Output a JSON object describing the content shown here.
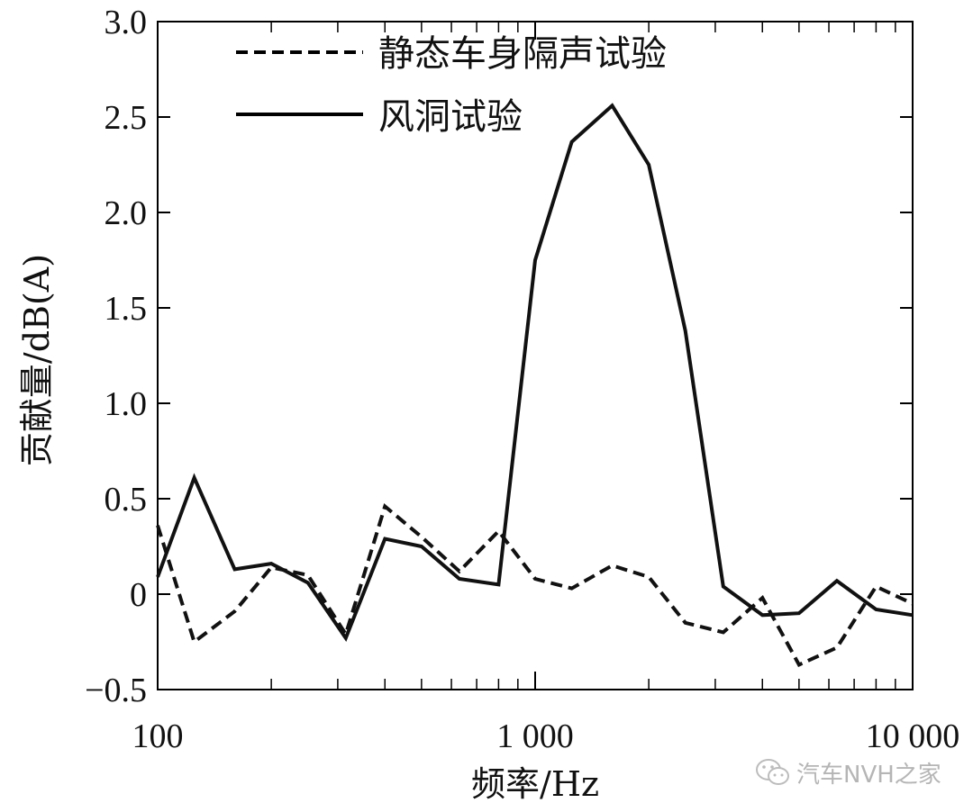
{
  "chart_data": {
    "type": "line",
    "xlabel": "频率/Hz",
    "ylabel": "贡献量/dB(A)",
    "x_scale": "log",
    "xlim": [
      100,
      10000
    ],
    "ylim": [
      -0.5,
      3.0
    ],
    "x_ticks": [
      {
        "value": 100,
        "label": "100"
      },
      {
        "value": 1000,
        "label": "1 000"
      },
      {
        "value": 10000,
        "label": "10 000"
      }
    ],
    "y_ticks": [
      {
        "value": -0.5,
        "label": "−0.5"
      },
      {
        "value": 0,
        "label": "0"
      },
      {
        "value": 0.5,
        "label": "0.5"
      },
      {
        "value": 1.0,
        "label": "1.0"
      },
      {
        "value": 1.5,
        "label": "1.5"
      },
      {
        "value": 2.0,
        "label": "2.0"
      },
      {
        "value": 2.5,
        "label": "2.5"
      },
      {
        "value": 3.0,
        "label": "3.0"
      }
    ],
    "grid": false,
    "legend_position": "top-center",
    "x": [
      100,
      125,
      160,
      200,
      250,
      315,
      400,
      500,
      630,
      800,
      1000,
      1250,
      1600,
      2000,
      2500,
      3150,
      4000,
      5000,
      6300,
      8000,
      10000
    ],
    "series": [
      {
        "name": "静态车身隔声试验",
        "style": "dashed",
        "color": "#111111",
        "values": [
          0.36,
          -0.25,
          -0.09,
          0.14,
          0.1,
          -0.21,
          0.46,
          0.3,
          0.12,
          0.33,
          0.08,
          0.03,
          0.15,
          0.09,
          -0.15,
          -0.2,
          -0.02,
          -0.37,
          -0.28,
          0.04,
          -0.05
        ]
      },
      {
        "name": "风洞试验",
        "style": "solid",
        "color": "#111111",
        "values": [
          0.09,
          0.61,
          0.13,
          0.16,
          0.06,
          -0.23,
          0.29,
          0.25,
          0.08,
          0.05,
          1.75,
          2.37,
          2.56,
          2.25,
          1.38,
          0.04,
          -0.11,
          -0.1,
          0.07,
          -0.08,
          -0.11
        ]
      }
    ]
  },
  "watermark": {
    "text": "汽车NVH之家",
    "icon": "wechat-icon"
  }
}
